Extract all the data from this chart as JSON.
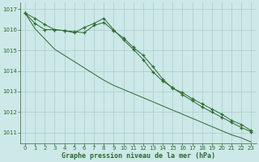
{
  "x": [
    0,
    1,
    2,
    3,
    4,
    5,
    6,
    7,
    8,
    9,
    10,
    11,
    12,
    13,
    14,
    15,
    16,
    17,
    18,
    19,
    20,
    21,
    22,
    23
  ],
  "line1": [
    1016.8,
    1016.55,
    1016.25,
    1016.0,
    1015.95,
    1015.85,
    1016.1,
    1016.3,
    1016.55,
    1016.0,
    1015.5,
    1015.05,
    1014.55,
    1013.95,
    1013.5,
    1013.2,
    1012.85,
    1012.55,
    1012.25,
    1012.0,
    1011.75,
    1011.5,
    1011.25,
    1011.05
  ],
  "line2": [
    1016.8,
    1016.3,
    1016.0,
    1016.0,
    1015.95,
    1015.9,
    1015.85,
    1016.2,
    1016.35,
    1015.95,
    1015.6,
    1015.15,
    1014.75,
    1014.2,
    1013.6,
    1013.15,
    1012.95,
    1012.65,
    1012.4,
    1012.15,
    1011.9,
    1011.6,
    1011.4,
    1011.1
  ],
  "line3": [
    1016.8,
    1016.05,
    1015.55,
    1015.05,
    1014.75,
    1014.45,
    1014.15,
    1013.85,
    1013.55,
    1013.3,
    1013.1,
    1012.9,
    1012.7,
    1012.5,
    1012.3,
    1012.1,
    1011.9,
    1011.7,
    1011.5,
    1011.3,
    1011.1,
    1010.9,
    1010.75,
    1010.55
  ],
  "line_color": "#2d6a2d",
  "bg_color": "#cde8e8",
  "grid_color": "#a8cccc",
  "xlabel": "Graphe pression niveau de la mer (hPa)",
  "ylim_min": 1010.5,
  "ylim_max": 1017.3,
  "yticks": [
    1011,
    1012,
    1013,
    1014,
    1015,
    1016,
    1017
  ],
  "xticks": [
    0,
    1,
    2,
    3,
    4,
    5,
    6,
    7,
    8,
    9,
    10,
    11,
    12,
    13,
    14,
    15,
    16,
    17,
    18,
    19,
    20,
    21,
    22,
    23
  ],
  "tick_fontsize": 5.0,
  "label_fontsize": 6.0
}
